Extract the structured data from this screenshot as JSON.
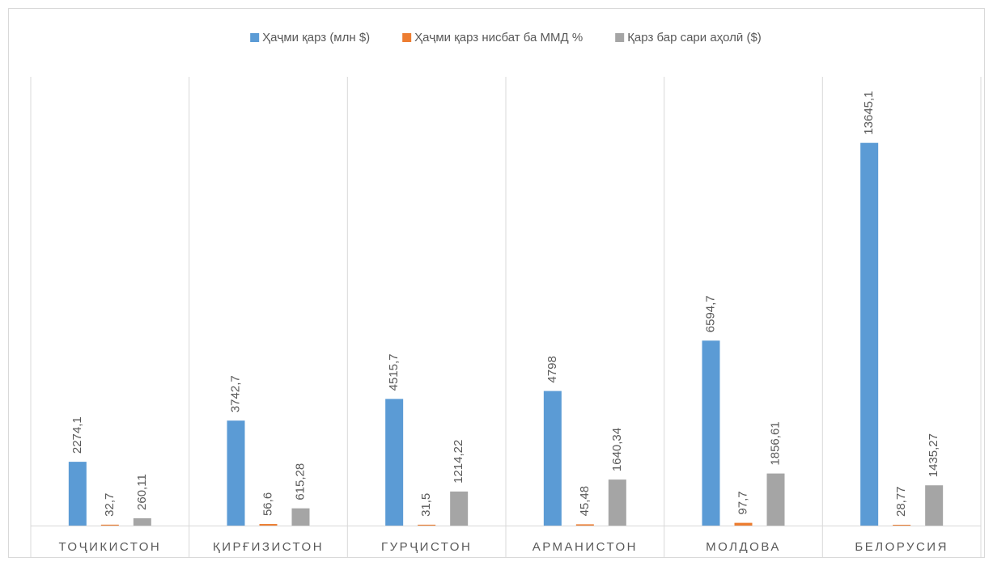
{
  "chart_data": {
    "type": "bar",
    "categories": [
      "ТОҶИКИСТОН",
      "ҚИРҒИЗИСТОН",
      "ГУРҶИСТОН",
      "АРМАНИСТОН",
      "МОЛДОВА",
      "БЕЛОРУСИЯ"
    ],
    "series": [
      {
        "name": "Ҳаҷми қарз (млн $)",
        "color": "#5b9bd5",
        "values": [
          2274.1,
          3742.7,
          4515.7,
          4798,
          6594.7,
          13645.1
        ],
        "value_labels": [
          "2274,1",
          "3742,7",
          "4515,7",
          "4798",
          "6594,7",
          "13645,1"
        ]
      },
      {
        "name": "Ҳаҷми қарз нисбат ба ММД %",
        "color": "#ed7d31",
        "values": [
          32.7,
          56.6,
          31.5,
          45.48,
          97.7,
          28.77
        ],
        "value_labels": [
          "32,7",
          "56,6",
          "31,5",
          "45,48",
          "97,7",
          "28,77"
        ]
      },
      {
        "name": "Қарз бар сари аҳолӣ ($)",
        "color": "#a5a5a5",
        "values": [
          260.11,
          615.28,
          1214.22,
          1640.34,
          1856.61,
          1435.27
        ],
        "value_labels": [
          "260,11",
          "615,28",
          "1214,22",
          "1640,34",
          "1856,61",
          "1435,27"
        ]
      }
    ],
    "ylim": [
      0,
      16000
    ],
    "legend": "top"
  }
}
